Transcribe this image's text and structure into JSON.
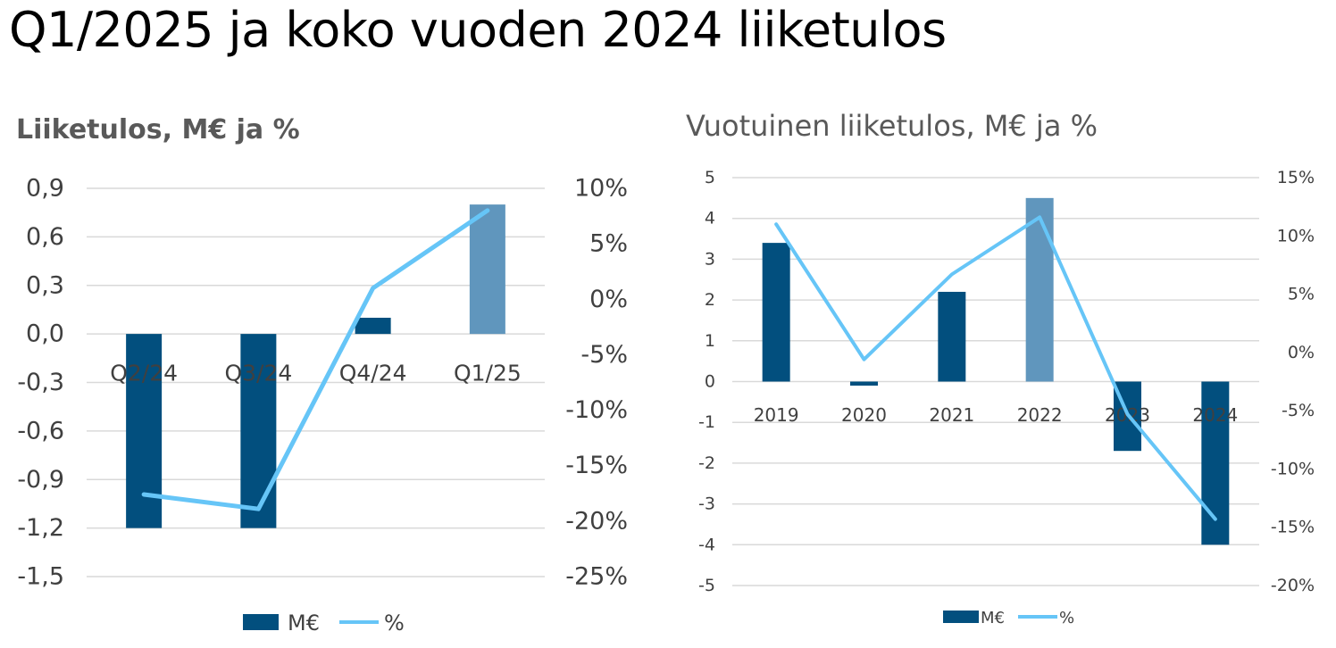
{
  "title": "Q1/2025 ja koko vuoden 2024 liiketulos",
  "colors": {
    "bar": "#024F7E",
    "bar_highlight": "#6096BD",
    "line": "#66C5F7",
    "grid": "#D9D9D9"
  },
  "chart_data": [
    {
      "type": "bar",
      "title": "Liiketulos, M€ ja %",
      "categories": [
        "Q2/24",
        "Q3/24",
        "Q4/24",
        "Q1/25"
      ],
      "y_ticks": [
        "0,9",
        "0,6",
        "0,3",
        "0,0",
        "-0,3",
        "-0,6",
        "-0,9",
        "-1,2",
        "-1,5"
      ],
      "y2_ticks": [
        "10%",
        "5%",
        "0%",
        "-5%",
        "-10%",
        "-15%",
        "-20%",
        "-25%"
      ],
      "ylim": [
        -1.5,
        0.9
      ],
      "y2lim": [
        -25,
        10
      ],
      "grid": true,
      "legend_position": "bottom",
      "highlight_index": 3,
      "series": [
        {
          "name": "M€",
          "type": "bar",
          "axis": "left",
          "values": [
            -1.2,
            -1.2,
            0.1,
            0.8
          ]
        },
        {
          "name": "%",
          "type": "line",
          "axis": "right",
          "values": [
            -17.6,
            -18.9,
            1.0,
            8.0
          ]
        }
      ]
    },
    {
      "type": "bar",
      "title": "Vuotuinen liiketulos, M€ ja %",
      "categories": [
        "2019",
        "2020",
        "2021",
        "2022",
        "2023",
        "2024"
      ],
      "y_ticks": [
        "5",
        "4",
        "3",
        "2",
        "1",
        "0",
        "-1",
        "-2",
        "-3",
        "-4",
        "-5"
      ],
      "y2_ticks": [
        "15%",
        "10%",
        "5%",
        "0%",
        "-5%",
        "-10%",
        "-15%",
        "-20%"
      ],
      "ylim": [
        -5,
        5
      ],
      "y2lim": [
        -20,
        15
      ],
      "grid": true,
      "legend_position": "bottom",
      "highlight_index": 3,
      "series": [
        {
          "name": "M€",
          "type": "bar",
          "axis": "left",
          "values": [
            3.4,
            -0.1,
            2.2,
            4.5,
            -1.7,
            -4.0
          ]
        },
        {
          "name": "%",
          "type": "line",
          "axis": "right",
          "values": [
            11.0,
            -0.6,
            6.7,
            11.6,
            -5.3,
            -14.3
          ]
        }
      ]
    }
  ]
}
